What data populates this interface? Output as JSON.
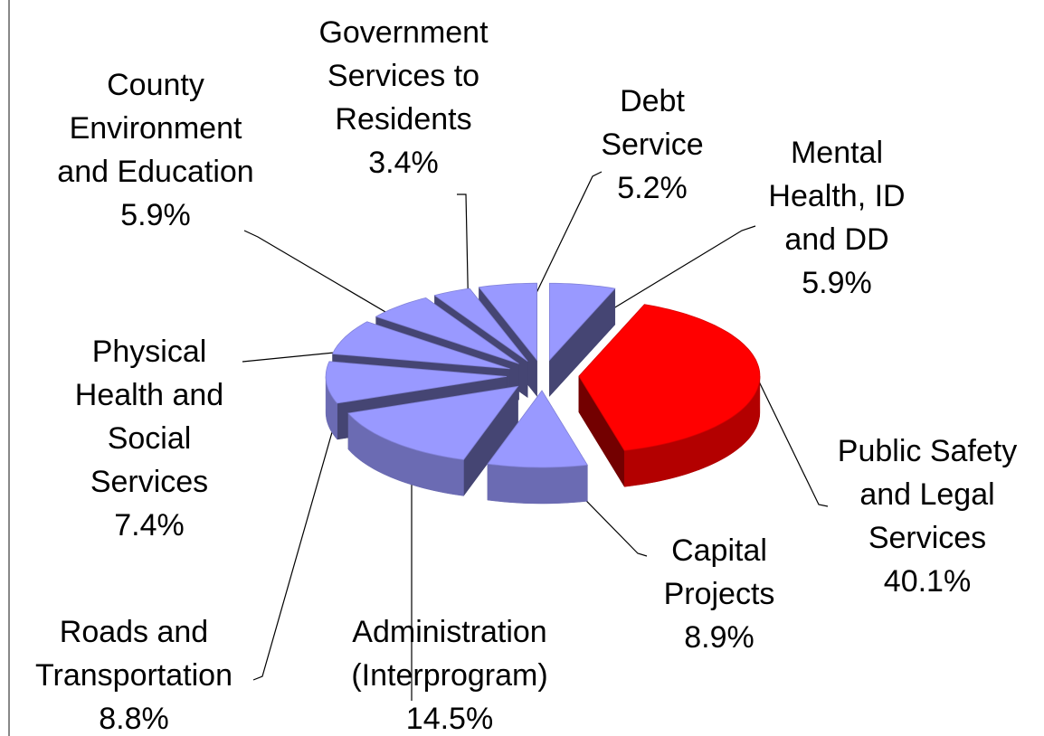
{
  "chart_data": {
    "type": "pie3d",
    "categories": [
      "Mental Health, ID and DD",
      "Public Safety and Legal Services",
      "Capital Projects",
      "Administration (Interprogram)",
      "Roads and Transportation",
      "Physical Health and Social Services",
      "County Environment and Education",
      "Government Services to Residents",
      "Debt Service"
    ],
    "values": [
      5.9,
      40.1,
      8.9,
      14.5,
      8.8,
      7.4,
      5.9,
      3.4,
      5.2
    ],
    "value_labels": [
      "5.9%",
      "40.1%",
      "8.9%",
      "14.5%",
      "8.8%",
      "7.4%",
      "5.9%",
      "3.4%",
      "5.2%"
    ],
    "colors": [
      "#9999ff",
      "#ff0000",
      "#9999ff",
      "#9999ff",
      "#9999ff",
      "#9999ff",
      "#9999ff",
      "#9999ff",
      "#9999ff"
    ]
  }
}
